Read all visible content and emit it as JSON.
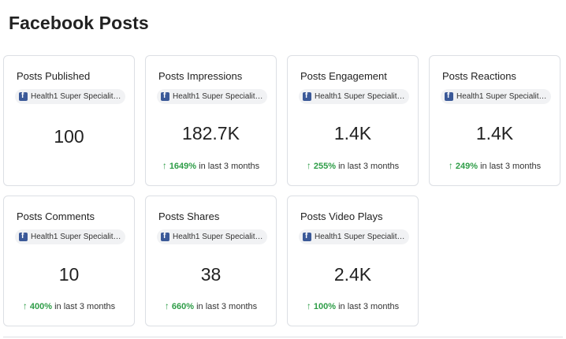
{
  "page": {
    "title": "Facebook Posts"
  },
  "cards": [
    {
      "title": "Posts Published",
      "account": "Health1 Super Speciality ...",
      "value": "100"
    },
    {
      "title": "Posts Impressions",
      "account": "Health1 Super Speciality ...",
      "value": "182.7K",
      "trend_pct": "1649%",
      "trend_text": "in last 3 months"
    },
    {
      "title": "Posts Engagement",
      "account": "Health1 Super Speciality ...",
      "value": "1.4K",
      "trend_pct": "255%",
      "trend_text": "in last 3 months"
    },
    {
      "title": "Posts Reactions",
      "account": "Health1 Super Speciality ...",
      "value": "1.4K",
      "trend_pct": "249%",
      "trend_text": "in last 3 months"
    },
    {
      "title": "Posts Comments",
      "account": "Health1 Super Speciality ...",
      "value": "10",
      "trend_pct": "400%",
      "trend_text": "in last 3 months"
    },
    {
      "title": "Posts Shares",
      "account": "Health1 Super Speciality ...",
      "value": "38",
      "trend_pct": "660%",
      "trend_text": "in last 3 months"
    },
    {
      "title": "Posts Video Plays",
      "account": "Health1 Super Speciality ...",
      "value": "2.4K",
      "trend_pct": "100%",
      "trend_text": "in last 3 months"
    }
  ],
  "icons": {
    "account": "facebook-icon",
    "trend": "arrow-up-icon"
  },
  "colors": {
    "trend_positive": "#2e9d47",
    "facebook_brand": "#3b5998"
  },
  "symbols": {
    "trend_arrow": "↑"
  }
}
